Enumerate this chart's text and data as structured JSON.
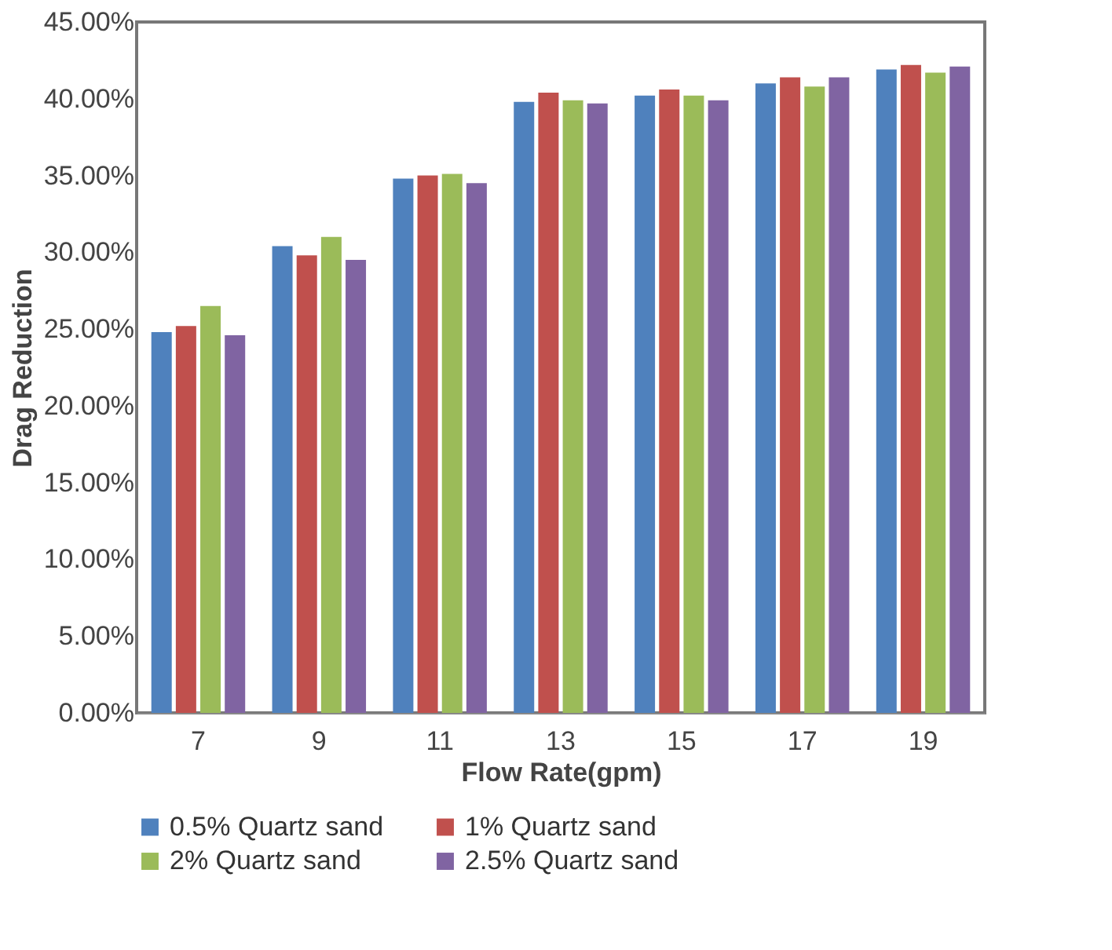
{
  "chart_data": {
    "type": "bar",
    "xlabel": "Flow Rate(gpm)",
    "ylabel": "Drag Reduction",
    "categories": [
      "7",
      "9",
      "11",
      "13",
      "15",
      "17",
      "19"
    ],
    "series": [
      {
        "name": "0.5% Quartz sand",
        "color": "#4f81bd",
        "values": [
          24.8,
          30.4,
          34.8,
          39.8,
          40.2,
          41.0,
          41.9
        ]
      },
      {
        "name": "1% Quartz sand",
        "color": "#c0504d",
        "values": [
          25.2,
          29.8,
          35.0,
          40.4,
          40.6,
          41.4,
          42.2
        ]
      },
      {
        "name": "2% Quartz sand",
        "color": "#9bbb59",
        "values": [
          26.5,
          31.0,
          35.1,
          39.9,
          40.2,
          40.8,
          41.7
        ]
      },
      {
        "name": "2.5% Quartz sand",
        "color": "#8064a2",
        "values": [
          24.6,
          29.5,
          34.5,
          39.7,
          39.9,
          41.4,
          42.1
        ]
      }
    ],
    "ylim": [
      0,
      45
    ],
    "yticks": [
      {
        "value": 0,
        "label": "0.00%"
      },
      {
        "value": 5,
        "label": "5.00%"
      },
      {
        "value": 10,
        "label": "10.00%"
      },
      {
        "value": 15,
        "label": "15.00%"
      },
      {
        "value": 20,
        "label": "20.00%"
      },
      {
        "value": 25,
        "label": "25.00%"
      },
      {
        "value": 30,
        "label": "30.00%"
      },
      {
        "value": 35,
        "label": "35.00%"
      },
      {
        "value": 40,
        "label": "40.00%"
      },
      {
        "value": 45,
        "label": "45.00%"
      }
    ],
    "grid": false,
    "legend": "bottom"
  }
}
